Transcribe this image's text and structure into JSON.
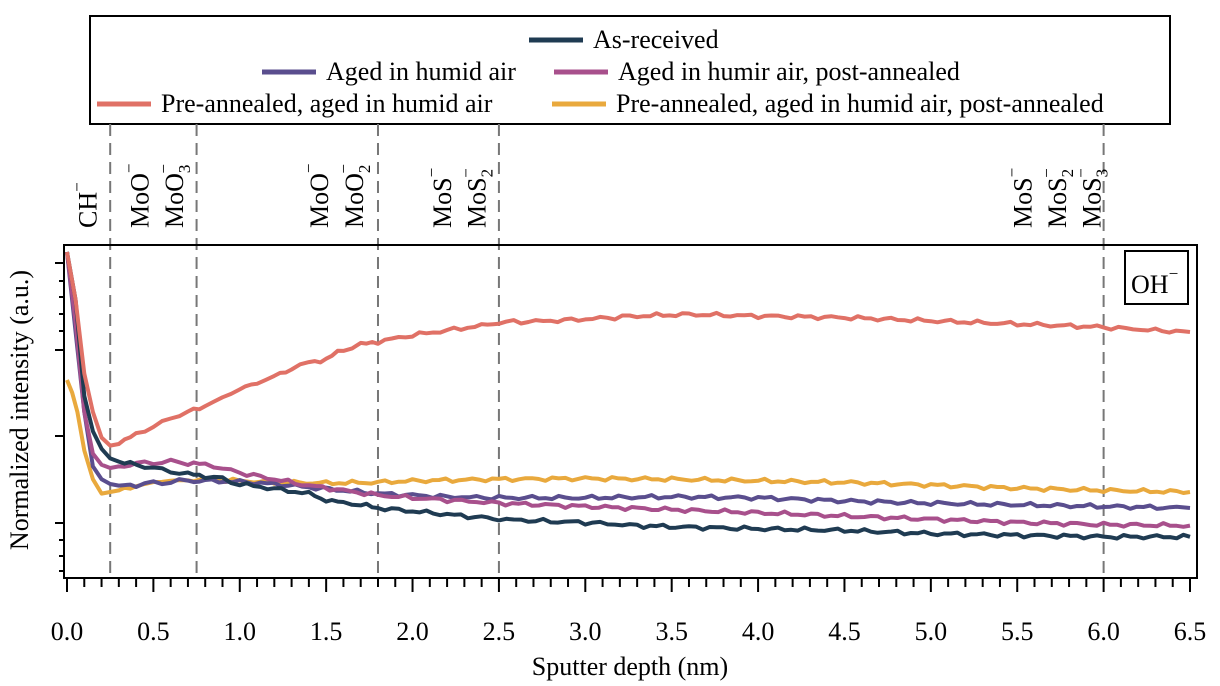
{
  "colors": {
    "as_received": "#1f3b52",
    "aged_humid": "#5a4e8e",
    "aged_post_annealed": "#a8508c",
    "pre_annealed_aged": "#e07166",
    "pre_annealed_aged_post": "#e9a93d"
  },
  "chart_data": {
    "type": "line",
    "title": "",
    "xlabel": "Sputter depth (nm)",
    "ylabel": "Normalized intensity (a.u.)",
    "xlim": [
      0,
      6.5
    ],
    "ylim": [
      0,
      1
    ],
    "x_ticks": [
      "0.0",
      "0.5",
      "1.0",
      "1.5",
      "2.0",
      "2.5",
      "3.0",
      "3.5",
      "4.0",
      "4.5",
      "5.0",
      "5.5",
      "6.0",
      "6.5"
    ],
    "grid": false,
    "legend_position": "top",
    "annotation_box": "OH",
    "annotation_box_sup": "−",
    "vertical_lines": [
      0.25,
      0.75,
      1.8,
      2.5,
      6.0
    ],
    "ion_labels": [
      {
        "x": 0.12,
        "base": "CH",
        "sub": "",
        "sup": "−"
      },
      {
        "x": 0.42,
        "base": "MoO",
        "sub": "",
        "sup": "−"
      },
      {
        "x": 0.62,
        "base": "MoO",
        "sub": "3",
        "sup": "−"
      },
      {
        "x": 1.46,
        "base": "MoO",
        "sub": "",
        "sup": "−"
      },
      {
        "x": 1.66,
        "base": "MoO",
        "sub": "2",
        "sup": "−"
      },
      {
        "x": 2.17,
        "base": "MoS",
        "sub": "",
        "sup": "−"
      },
      {
        "x": 2.37,
        "base": "MoS",
        "sub": "2",
        "sup": "−"
      },
      {
        "x": 5.53,
        "base": "MoS",
        "sub": "",
        "sup": "−"
      },
      {
        "x": 5.73,
        "base": "MoS",
        "sub": "2",
        "sup": "−"
      },
      {
        "x": 5.93,
        "base": "MoS",
        "sub": "3",
        "sup": "−"
      }
    ],
    "series": [
      {
        "name": "As-received",
        "color_key": "as_received",
        "points": [
          [
            0.0,
            1.0
          ],
          [
            0.05,
            0.85
          ],
          [
            0.1,
            0.55
          ],
          [
            0.15,
            0.44
          ],
          [
            0.2,
            0.385
          ],
          [
            0.25,
            0.355
          ],
          [
            0.3,
            0.345
          ],
          [
            0.4,
            0.335
          ],
          [
            0.5,
            0.325
          ],
          [
            0.6,
            0.315
          ],
          [
            0.7,
            0.305
          ],
          [
            0.8,
            0.3
          ],
          [
            0.9,
            0.29
          ],
          [
            1.0,
            0.275
          ],
          [
            1.2,
            0.26
          ],
          [
            1.4,
            0.245
          ],
          [
            1.5,
            0.225
          ],
          [
            1.6,
            0.215
          ],
          [
            1.7,
            0.21
          ],
          [
            1.8,
            0.2
          ],
          [
            2.0,
            0.19
          ],
          [
            2.2,
            0.18
          ],
          [
            2.4,
            0.17
          ],
          [
            2.5,
            0.165
          ],
          [
            2.8,
            0.158
          ],
          [
            3.0,
            0.155
          ],
          [
            3.3,
            0.145
          ],
          [
            3.6,
            0.14
          ],
          [
            4.0,
            0.135
          ],
          [
            4.5,
            0.13
          ],
          [
            5.0,
            0.12
          ],
          [
            5.5,
            0.115
          ],
          [
            6.0,
            0.11
          ],
          [
            6.5,
            0.11
          ]
        ]
      },
      {
        "name": "Aged in humid air",
        "color_key": "aged_humid",
        "points": [
          [
            0.0,
            1.0
          ],
          [
            0.05,
            0.75
          ],
          [
            0.1,
            0.5
          ],
          [
            0.15,
            0.33
          ],
          [
            0.2,
            0.29
          ],
          [
            0.25,
            0.275
          ],
          [
            0.3,
            0.27
          ],
          [
            0.4,
            0.272
          ],
          [
            0.5,
            0.278
          ],
          [
            0.6,
            0.282
          ],
          [
            0.7,
            0.285
          ],
          [
            0.8,
            0.285
          ],
          [
            1.0,
            0.282
          ],
          [
            1.2,
            0.275
          ],
          [
            1.4,
            0.265
          ],
          [
            1.6,
            0.255
          ],
          [
            1.8,
            0.245
          ],
          [
            2.0,
            0.24
          ],
          [
            2.2,
            0.235
          ],
          [
            2.5,
            0.232
          ],
          [
            3.0,
            0.232
          ],
          [
            3.5,
            0.235
          ],
          [
            4.0,
            0.232
          ],
          [
            4.5,
            0.222
          ],
          [
            5.0,
            0.215
          ],
          [
            5.5,
            0.21
          ],
          [
            6.0,
            0.205
          ],
          [
            6.5,
            0.2
          ]
        ]
      },
      {
        "name": "Aged in humir air, post-annealed",
        "color_key": "aged_post_annealed",
        "points": [
          [
            0.0,
            1.0
          ],
          [
            0.05,
            0.78
          ],
          [
            0.1,
            0.5
          ],
          [
            0.15,
            0.37
          ],
          [
            0.2,
            0.335
          ],
          [
            0.25,
            0.325
          ],
          [
            0.3,
            0.33
          ],
          [
            0.4,
            0.338
          ],
          [
            0.5,
            0.342
          ],
          [
            0.6,
            0.345
          ],
          [
            0.7,
            0.34
          ],
          [
            0.8,
            0.335
          ],
          [
            0.9,
            0.325
          ],
          [
            1.0,
            0.31
          ],
          [
            1.2,
            0.29
          ],
          [
            1.4,
            0.27
          ],
          [
            1.6,
            0.255
          ],
          [
            1.8,
            0.24
          ],
          [
            2.0,
            0.232
          ],
          [
            2.2,
            0.225
          ],
          [
            2.5,
            0.215
          ],
          [
            3.0,
            0.205
          ],
          [
            3.5,
            0.195
          ],
          [
            4.0,
            0.185
          ],
          [
            4.5,
            0.175
          ],
          [
            5.0,
            0.165
          ],
          [
            5.5,
            0.155
          ],
          [
            6.0,
            0.148
          ],
          [
            6.5,
            0.145
          ]
        ]
      },
      {
        "name": "Pre-annealed, aged in humid air",
        "color_key": "pre_annealed_aged",
        "points": [
          [
            0.0,
            1.0
          ],
          [
            0.05,
            0.85
          ],
          [
            0.1,
            0.62
          ],
          [
            0.15,
            0.5
          ],
          [
            0.2,
            0.42
          ],
          [
            0.25,
            0.395
          ],
          [
            0.3,
            0.4
          ],
          [
            0.4,
            0.43
          ],
          [
            0.5,
            0.455
          ],
          [
            0.6,
            0.48
          ],
          [
            0.7,
            0.5
          ],
          [
            0.8,
            0.52
          ],
          [
            0.9,
            0.545
          ],
          [
            1.0,
            0.57
          ],
          [
            1.1,
            0.59
          ],
          [
            1.2,
            0.61
          ],
          [
            1.3,
            0.635
          ],
          [
            1.4,
            0.655
          ],
          [
            1.5,
            0.665
          ],
          [
            1.6,
            0.695
          ],
          [
            1.7,
            0.71
          ],
          [
            1.8,
            0.72
          ],
          [
            2.0,
            0.74
          ],
          [
            2.2,
            0.755
          ],
          [
            2.4,
            0.77
          ],
          [
            2.5,
            0.78
          ],
          [
            2.8,
            0.785
          ],
          [
            3.0,
            0.79
          ],
          [
            3.3,
            0.8
          ],
          [
            3.6,
            0.805
          ],
          [
            4.0,
            0.8
          ],
          [
            4.5,
            0.795
          ],
          [
            5.0,
            0.785
          ],
          [
            5.5,
            0.775
          ],
          [
            6.0,
            0.765
          ],
          [
            6.3,
            0.755
          ],
          [
            6.5,
            0.75
          ]
        ]
      },
      {
        "name": "Pre-annealed, aged in humid air, post-annealed",
        "color_key": "pre_annealed_aged_post",
        "points": [
          [
            0.0,
            0.6
          ],
          [
            0.03,
            0.56
          ],
          [
            0.06,
            0.5
          ],
          [
            0.1,
            0.38
          ],
          [
            0.15,
            0.29
          ],
          [
            0.2,
            0.245
          ],
          [
            0.25,
            0.25
          ],
          [
            0.3,
            0.255
          ],
          [
            0.4,
            0.27
          ],
          [
            0.5,
            0.28
          ],
          [
            0.6,
            0.285
          ],
          [
            0.7,
            0.288
          ],
          [
            0.8,
            0.288
          ],
          [
            1.0,
            0.285
          ],
          [
            1.2,
            0.28
          ],
          [
            1.5,
            0.278
          ],
          [
            1.8,
            0.28
          ],
          [
            2.0,
            0.285
          ],
          [
            2.5,
            0.29
          ],
          [
            3.0,
            0.292
          ],
          [
            3.5,
            0.29
          ],
          [
            4.0,
            0.285
          ],
          [
            4.5,
            0.28
          ],
          [
            5.0,
            0.272
          ],
          [
            5.5,
            0.262
          ],
          [
            6.0,
            0.255
          ],
          [
            6.5,
            0.25
          ]
        ]
      }
    ]
  }
}
